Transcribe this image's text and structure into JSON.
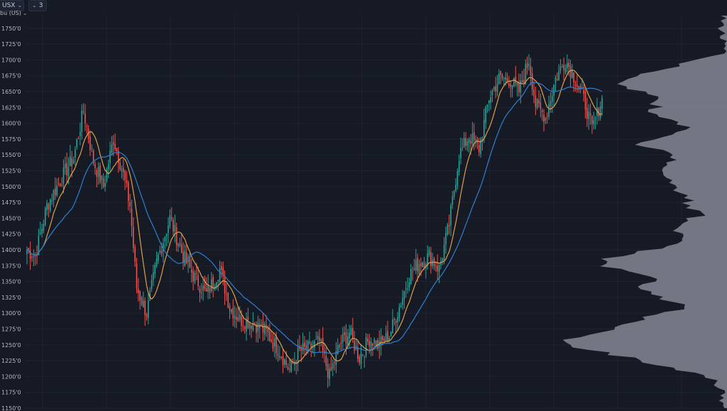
{
  "toolbar": {
    "symbol": "USX",
    "interval": "3",
    "unit": "bu (US)"
  },
  "chart_data": {
    "type": "candlestick",
    "ylim": [
      11500,
      17700
    ],
    "y_ticks": [
      "1750'0",
      "1725'0",
      "1700'0",
      "1675'0",
      "1650'0",
      "1625'0",
      "1600'0",
      "1575'0",
      "1550'0",
      "1525'0",
      "1500'0",
      "1475'0",
      "1450'0",
      "1425'0",
      "1400'0",
      "1375'0",
      "1350'0",
      "1325'0",
      "1300'0",
      "1275'0",
      "1250'0",
      "1225'0",
      "1200'0",
      "1175'0",
      "1150'0"
    ],
    "grid": true,
    "colors": {
      "background": "#161a25",
      "grid": "#1f2430",
      "up_candle": "#26a69a",
      "down_candle": "#ef5350",
      "fast_ma": "#e0a04a",
      "slow_ma": "#2f80d1",
      "volume_profile": "#858894",
      "axis_text": "#b6bbc6"
    },
    "price_anchors": [
      {
        "i": 0,
        "p": 14000
      },
      {
        "i": 5,
        "p": 13900
      },
      {
        "i": 12,
        "p": 14700
      },
      {
        "i": 20,
        "p": 15100
      },
      {
        "i": 28,
        "p": 15450
      },
      {
        "i": 34,
        "p": 16200
      },
      {
        "i": 40,
        "p": 15400
      },
      {
        "i": 46,
        "p": 15000
      },
      {
        "i": 52,
        "p": 15750
      },
      {
        "i": 57,
        "p": 15300
      },
      {
        "i": 62,
        "p": 14700
      },
      {
        "i": 66,
        "p": 13400
      },
      {
        "i": 72,
        "p": 13000
      },
      {
        "i": 78,
        "p": 13800
      },
      {
        "i": 86,
        "p": 14500
      },
      {
        "i": 94,
        "p": 13900
      },
      {
        "i": 100,
        "p": 13600
      },
      {
        "i": 108,
        "p": 13300
      },
      {
        "i": 116,
        "p": 13700
      },
      {
        "i": 122,
        "p": 13100
      },
      {
        "i": 128,
        "p": 12900
      },
      {
        "i": 136,
        "p": 12850
      },
      {
        "i": 144,
        "p": 12700
      },
      {
        "i": 152,
        "p": 12400
      },
      {
        "i": 158,
        "p": 12100
      },
      {
        "i": 164,
        "p": 12400
      },
      {
        "i": 170,
        "p": 12450
      },
      {
        "i": 176,
        "p": 12550
      },
      {
        "i": 182,
        "p": 12000
      },
      {
        "i": 188,
        "p": 12500
      },
      {
        "i": 194,
        "p": 12700
      },
      {
        "i": 200,
        "p": 12300
      },
      {
        "i": 206,
        "p": 12600
      },
      {
        "i": 212,
        "p": 12500
      },
      {
        "i": 218,
        "p": 12650
      },
      {
        "i": 224,
        "p": 13100
      },
      {
        "i": 230,
        "p": 13600
      },
      {
        "i": 236,
        "p": 13800
      },
      {
        "i": 242,
        "p": 13900
      },
      {
        "i": 248,
        "p": 13700
      },
      {
        "i": 254,
        "p": 14400
      },
      {
        "i": 260,
        "p": 15500
      },
      {
        "i": 266,
        "p": 15800
      },
      {
        "i": 272,
        "p": 15600
      },
      {
        "i": 278,
        "p": 16400
      },
      {
        "i": 284,
        "p": 16700
      },
      {
        "i": 290,
        "p": 16700
      },
      {
        "i": 296,
        "p": 16500
      },
      {
        "i": 302,
        "p": 17000
      },
      {
        "i": 306,
        "p": 16300
      },
      {
        "i": 312,
        "p": 16100
      },
      {
        "i": 318,
        "p": 16700
      },
      {
        "i": 324,
        "p": 17000
      },
      {
        "i": 330,
        "p": 16700
      },
      {
        "i": 336,
        "p": 16300
      },
      {
        "i": 340,
        "p": 15900
      },
      {
        "i": 346,
        "p": 16400
      }
    ]
  }
}
